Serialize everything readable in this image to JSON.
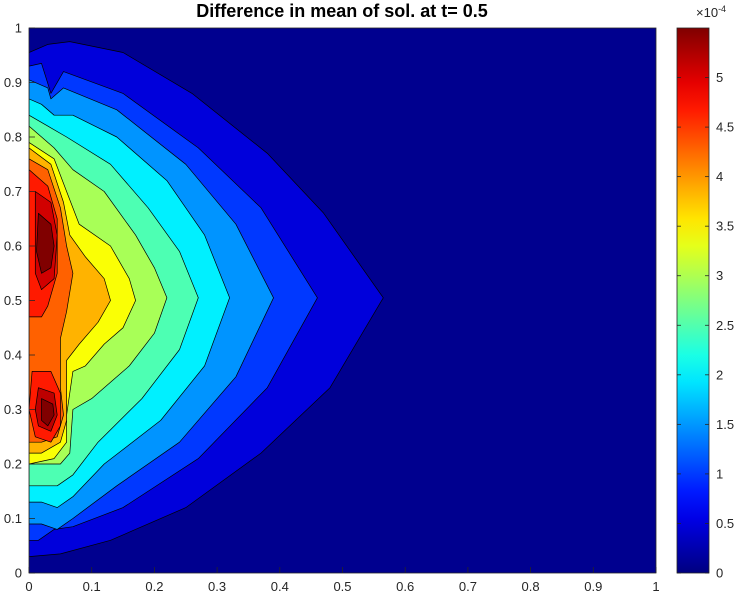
{
  "chart_data": {
    "type": "contourf",
    "title": "Difference in mean of sol. at t= 0.5",
    "xlabel": "",
    "ylabel": "",
    "xlim": [
      0,
      1
    ],
    "ylim": [
      0,
      1
    ],
    "xticks": [
      "0",
      "0.1",
      "0.2",
      "0.3",
      "0.4",
      "0.5",
      "0.6",
      "0.7",
      "0.8",
      "0.9",
      "1"
    ],
    "yticks": [
      "0",
      "0.1",
      "0.2",
      "0.3",
      "0.4",
      "0.5",
      "0.6",
      "0.7",
      "0.8",
      "0.9",
      "1"
    ],
    "colormap": "jet",
    "colorbar": {
      "range": [
        0,
        0.00055
      ],
      "exponent_label": "×10",
      "exponent_power": "-4",
      "ticks": [
        "0",
        "0.5",
        "1",
        "1.5",
        "2",
        "2.5",
        "3",
        "3.5",
        "4",
        "4.5",
        "5"
      ]
    },
    "levels": [
      0,
      5e-05,
      0.0001,
      0.00015,
      0.0002,
      0.00025,
      0.0003,
      0.00035,
      0.0004,
      0.00045,
      0.0005
    ],
    "contour_extents_x_at_y05": [
      0.565,
      0.46,
      0.39,
      0.32,
      0.27,
      0.22,
      0.17,
      0.13,
      0.07,
      0.04
    ],
    "peaks": [
      {
        "x": 0.025,
        "y": 0.6,
        "value": 0.00055
      },
      {
        "x": 0.025,
        "y": 0.3,
        "value": 0.00054
      }
    ]
  }
}
